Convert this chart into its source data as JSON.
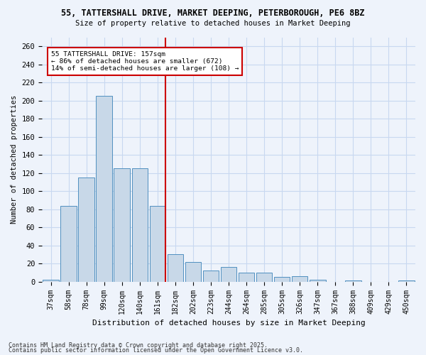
{
  "title1": "55, TATTERSHALL DRIVE, MARKET DEEPING, PETERBOROUGH, PE6 8BZ",
  "title2": "Size of property relative to detached houses in Market Deeping",
  "xlabel": "Distribution of detached houses by size in Market Deeping",
  "ylabel": "Number of detached properties",
  "bins": [
    "37sqm",
    "58sqm",
    "78sqm",
    "99sqm",
    "120sqm",
    "140sqm",
    "161sqm",
    "182sqm",
    "202sqm",
    "223sqm",
    "244sqm",
    "264sqm",
    "285sqm",
    "305sqm",
    "326sqm",
    "347sqm",
    "367sqm",
    "388sqm",
    "409sqm",
    "429sqm",
    "450sqm"
  ],
  "values": [
    2,
    84,
    115,
    205,
    125,
    125,
    84,
    30,
    22,
    12,
    16,
    10,
    10,
    5,
    6,
    2,
    0,
    1,
    0,
    0,
    1
  ],
  "bar_color": "#c8d8e8",
  "bar_edge_color": "#5090c0",
  "grid_color": "#c8d8f0",
  "bg_color": "#eef3fb",
  "vline_bin_index": 6,
  "vline_color": "#cc0000",
  "annotation_text": "55 TATTERSHALL DRIVE: 157sqm\n← 86% of detached houses are smaller (672)\n14% of semi-detached houses are larger (108) →",
  "annotation_box_color": "#ffffff",
  "annotation_box_edge": "#cc0000",
  "footer1": "Contains HM Land Registry data © Crown copyright and database right 2025.",
  "footer2": "Contains public sector information licensed under the Open Government Licence v3.0.",
  "ylim": [
    0,
    270
  ],
  "yticks": [
    0,
    20,
    40,
    60,
    80,
    100,
    120,
    140,
    160,
    180,
    200,
    220,
    240,
    260
  ]
}
